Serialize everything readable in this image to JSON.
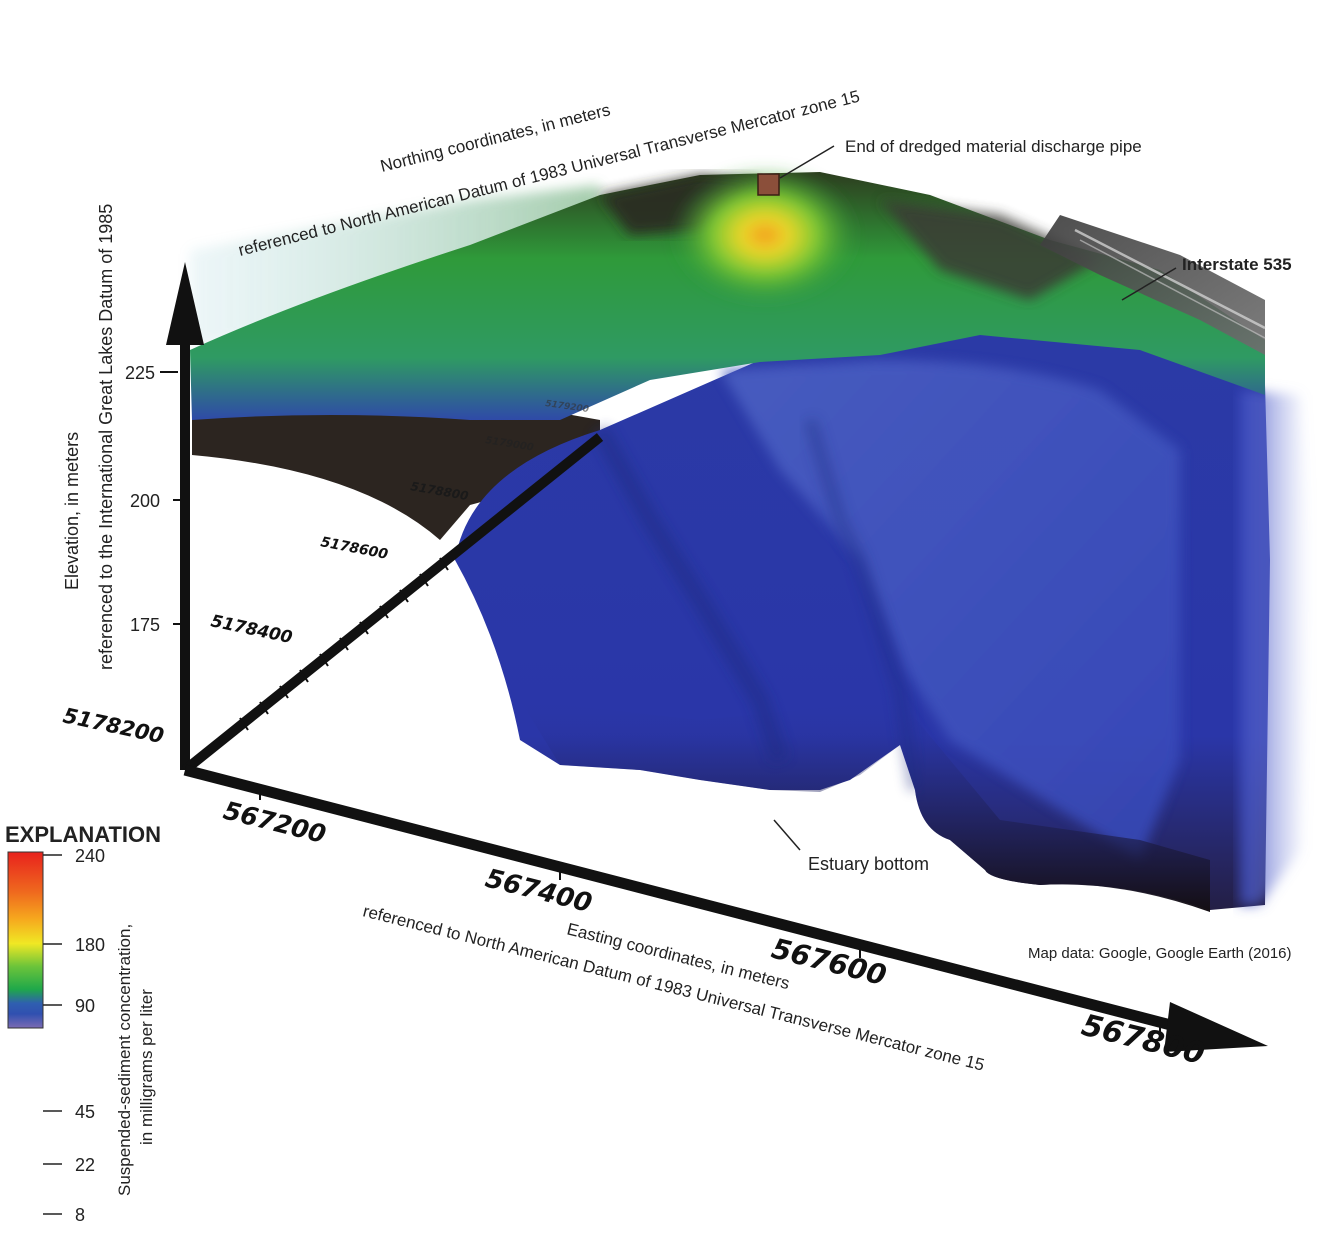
{
  "labels": {
    "northing_line1": "Northing coordinates, in meters",
    "northing_line2": "referenced to North American Datum of 1983 Universal Transverse Mercator zone 15",
    "elevation_line1": "Elevation, in meters",
    "elevation_line2": "referenced to the International Great Lakes Datum of 1985",
    "easting_line1": "Easting coordinates, in meters",
    "easting_line2": "referenced to North American Datum of 1983 Universal Transverse Mercator zone 15",
    "pipe": "End of dredged material discharge pipe",
    "interstate": "Interstate 535",
    "estuary": "Estuary bottom",
    "map_credit": "Map data: Google, Google Earth (2016)"
  },
  "axes": {
    "elevation_ticks": [
      "225",
      "200",
      "175"
    ],
    "northing_ticks": [
      "5178200",
      "5178400",
      "5178600",
      "5178800",
      "5179000",
      "5179200"
    ],
    "easting_ticks": [
      "567200",
      "567400",
      "567600",
      "567800"
    ]
  },
  "legend": {
    "title": "EXPLANATION",
    "label_line1": "Suspended-sediment concentration,",
    "label_line2": "in milligrams per liter",
    "ticks": [
      "240",
      "180",
      "90",
      "45",
      "22",
      "8"
    ]
  },
  "colors": {
    "pipe_marker": "#8b4f3a",
    "low": "#2b3db5",
    "mid": "#3fae3a",
    "high": "#f3a21a",
    "max": "#e8241d",
    "min": "#7b6bb3"
  }
}
